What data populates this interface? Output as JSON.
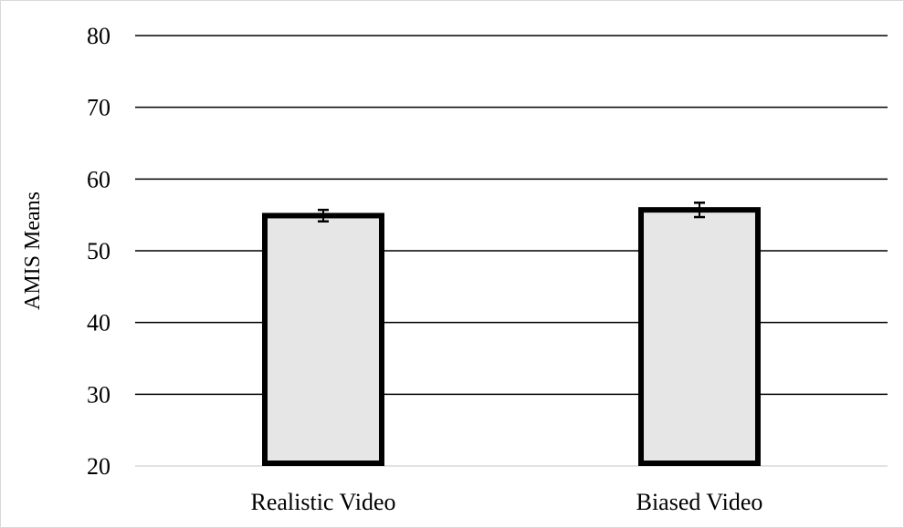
{
  "chart_data": {
    "type": "bar",
    "title": "",
    "xlabel": "",
    "ylabel": "AMIS Means",
    "categories": [
      "Realistic Video",
      "Biased Video"
    ],
    "values": [
      54.9,
      55.7
    ],
    "error": [
      0.8,
      1.0
    ],
    "ylim": [
      20,
      80
    ],
    "yticks": [
      20,
      30,
      40,
      50,
      60,
      70,
      80
    ],
    "grid": true,
    "legend": "none",
    "colors": {
      "bar_fill": "#e7e6e6",
      "bar_stroke": "#000000",
      "grid": "#000000",
      "baseline": "#d9d9d9"
    }
  }
}
